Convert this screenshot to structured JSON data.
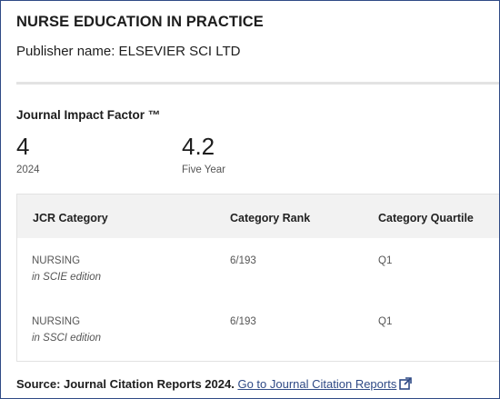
{
  "journal": {
    "title": "NURSE EDUCATION IN PRACTICE",
    "publisher": "Publisher name: ELSEVIER SCI LTD"
  },
  "impact_factor": {
    "heading": "Journal Impact Factor ™",
    "current": {
      "value": "4",
      "label": "2024"
    },
    "five_year": {
      "value": "4.2",
      "label": "Five Year"
    }
  },
  "table": {
    "headers": [
      "JCR Category",
      "Category Rank",
      "Category Quartile"
    ],
    "rows": [
      {
        "category": "NURSING",
        "edition": "in SCIE edition",
        "rank": "6/193",
        "quartile": "Q1"
      },
      {
        "category": "NURSING",
        "edition": "in SSCI edition",
        "rank": "6/193",
        "quartile": "Q1"
      }
    ]
  },
  "footer": {
    "source": "Source: Journal Citation Reports  2024.",
    "link": "Go to Journal Citation Reports",
    "link_icon": "external-link-icon",
    "accent_color": "#2f4a86"
  }
}
